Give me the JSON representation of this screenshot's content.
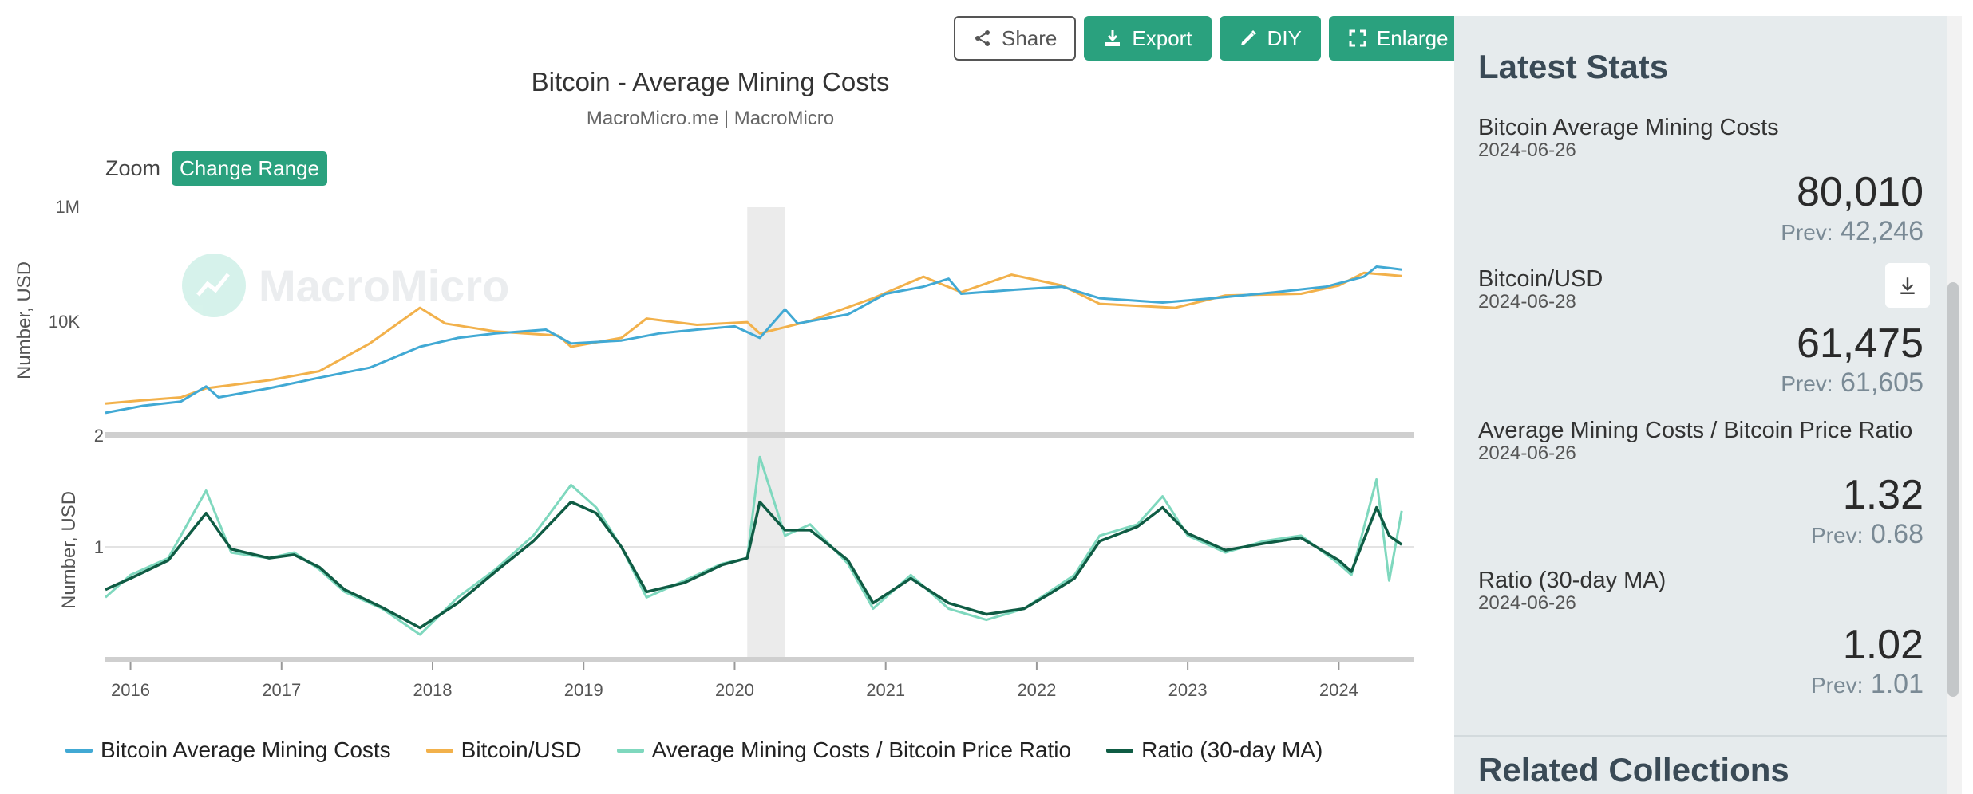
{
  "toolbar": {
    "share": "Share",
    "export": "Export",
    "diy": "DIY",
    "enlarge": "Enlarge"
  },
  "chart_header": {
    "title": "Bitcoin - Average Mining Costs",
    "subtitle": "MacroMicro.me | MacroMicro",
    "zoom_label": "Zoom",
    "zoom_button": "Change Range",
    "watermark": "MacroMicro"
  },
  "colors": {
    "mining_cost": "#41a9d4",
    "btc_usd": "#f2b14b",
    "ratio": "#7fd8be",
    "ratio_ma": "#0f5c44",
    "accent": "#2aa17e",
    "shade": "#ebebeb"
  },
  "chart_data": {
    "type": "line",
    "x_ticks": [
      "2016",
      "2017",
      "2018",
      "2019",
      "2020",
      "2021",
      "2022",
      "2023",
      "2024"
    ],
    "x_range": [
      "2015-11",
      "2024-07"
    ],
    "shaded_period": [
      "2020-02",
      "2020-05"
    ],
    "panels": [
      {
        "ylabel": "Number, USD",
        "yscale": "log",
        "y_ticks": [
          "1M",
          "10K"
        ],
        "ylim": [
          100,
          1000000
        ],
        "series": [
          {
            "name": "Bitcoin Average Mining Costs",
            "color": "#41a9d4",
            "points": [
              [
                "2015-11",
                240
              ],
              [
                "2016-02",
                320
              ],
              [
                "2016-05",
                380
              ],
              [
                "2016-07",
                700
              ],
              [
                "2016-08",
                450
              ],
              [
                "2016-12",
                650
              ],
              [
                "2017-04",
                1000
              ],
              [
                "2017-08",
                1500
              ],
              [
                "2017-12",
                3500
              ],
              [
                "2018-03",
                5000
              ],
              [
                "2018-06",
                6000
              ],
              [
                "2018-10",
                7000
              ],
              [
                "2018-12",
                4000
              ],
              [
                "2019-04",
                4500
              ],
              [
                "2019-07",
                6000
              ],
              [
                "2019-10",
                7000
              ],
              [
                "2020-01",
                8000
              ],
              [
                "2020-03",
                5000
              ],
              [
                "2020-05",
                16000
              ],
              [
                "2020-06",
                9000
              ],
              [
                "2020-10",
                13000
              ],
              [
                "2021-01",
                30000
              ],
              [
                "2021-04",
                40000
              ],
              [
                "2021-06",
                55000
              ],
              [
                "2021-07",
                30000
              ],
              [
                "2021-11",
                35000
              ],
              [
                "2022-03",
                40000
              ],
              [
                "2022-06",
                25000
              ],
              [
                "2022-11",
                21000
              ],
              [
                "2023-03",
                25000
              ],
              [
                "2023-08",
                32000
              ],
              [
                "2023-12",
                40000
              ],
              [
                "2024-03",
                60000
              ],
              [
                "2024-04",
                90000
              ],
              [
                "2024-05",
                85000
              ],
              [
                "2024-06",
                80010
              ]
            ]
          },
          {
            "name": "Bitcoin/USD",
            "color": "#f2b14b",
            "points": [
              [
                "2015-11",
                350
              ],
              [
                "2016-02",
                400
              ],
              [
                "2016-05",
                450
              ],
              [
                "2016-07",
                650
              ],
              [
                "2016-12",
                900
              ],
              [
                "2017-04",
                1300
              ],
              [
                "2017-08",
                4000
              ],
              [
                "2017-12",
                17000
              ],
              [
                "2018-02",
                9000
              ],
              [
                "2018-06",
                6500
              ],
              [
                "2018-11",
                5500
              ],
              [
                "2018-12",
                3500
              ],
              [
                "2019-04",
                5000
              ],
              [
                "2019-06",
                11000
              ],
              [
                "2019-10",
                8500
              ],
              [
                "2020-02",
                9500
              ],
              [
                "2020-03",
                6000
              ],
              [
                "2020-07",
                10000
              ],
              [
                "2020-12",
                25000
              ],
              [
                "2021-04",
                60000
              ],
              [
                "2021-07",
                32000
              ],
              [
                "2021-11",
                65000
              ],
              [
                "2022-03",
                42000
              ],
              [
                "2022-06",
                20000
              ],
              [
                "2022-12",
                17000
              ],
              [
                "2023-04",
                28000
              ],
              [
                "2023-10",
                30000
              ],
              [
                "2024-01",
                42000
              ],
              [
                "2024-03",
                70000
              ],
              [
                "2024-06",
                61475
              ]
            ]
          }
        ]
      },
      {
        "ylabel": "Number, USD",
        "y_ticks": [
          "2",
          "1"
        ],
        "ylim": [
          0,
          2
        ],
        "series": [
          {
            "name": "Average Mining Costs / Bitcoin Price Ratio",
            "color": "#7fd8be",
            "points": [
              [
                "2015-11",
                0.55
              ],
              [
                "2016-01",
                0.75
              ],
              [
                "2016-04",
                0.9
              ],
              [
                "2016-07",
                1.5
              ],
              [
                "2016-09",
                0.95
              ],
              [
                "2016-12",
                0.9
              ],
              [
                "2017-02",
                0.95
              ],
              [
                "2017-04",
                0.8
              ],
              [
                "2017-06",
                0.6
              ],
              [
                "2017-09",
                0.45
              ],
              [
                "2017-12",
                0.22
              ],
              [
                "2018-03",
                0.55
              ],
              [
                "2018-06",
                0.8
              ],
              [
                "2018-09",
                1.1
              ],
              [
                "2018-12",
                1.55
              ],
              [
                "2019-02",
                1.35
              ],
              [
                "2019-04",
                1.0
              ],
              [
                "2019-06",
                0.55
              ],
              [
                "2019-09",
                0.7
              ],
              [
                "2019-12",
                0.85
              ],
              [
                "2020-02",
                0.9
              ],
              [
                "2020-03",
                1.8
              ],
              [
                "2020-05",
                1.1
              ],
              [
                "2020-07",
                1.2
              ],
              [
                "2020-10",
                0.85
              ],
              [
                "2020-12",
                0.45
              ],
              [
                "2021-03",
                0.75
              ],
              [
                "2021-06",
                0.45
              ],
              [
                "2021-09",
                0.35
              ],
              [
                "2021-12",
                0.45
              ],
              [
                "2022-02",
                0.6
              ],
              [
                "2022-04",
                0.75
              ],
              [
                "2022-06",
                1.1
              ],
              [
                "2022-09",
                1.2
              ],
              [
                "2022-11",
                1.45
              ],
              [
                "2023-01",
                1.1
              ],
              [
                "2023-04",
                0.95
              ],
              [
                "2023-07",
                1.05
              ],
              [
                "2023-10",
                1.1
              ],
              [
                "2024-01",
                0.85
              ],
              [
                "2024-02",
                0.75
              ],
              [
                "2024-04",
                1.6
              ],
              [
                "2024-05",
                0.7
              ],
              [
                "2024-06",
                1.32
              ]
            ]
          },
          {
            "name": "Ratio (30-day MA)",
            "color": "#0f5c44",
            "points": [
              [
                "2015-11",
                0.62
              ],
              [
                "2016-01",
                0.72
              ],
              [
                "2016-04",
                0.88
              ],
              [
                "2016-07",
                1.3
              ],
              [
                "2016-09",
                0.98
              ],
              [
                "2016-12",
                0.9
              ],
              [
                "2017-02",
                0.93
              ],
              [
                "2017-04",
                0.82
              ],
              [
                "2017-06",
                0.62
              ],
              [
                "2017-09",
                0.46
              ],
              [
                "2017-12",
                0.28
              ],
              [
                "2018-03",
                0.5
              ],
              [
                "2018-06",
                0.78
              ],
              [
                "2018-09",
                1.05
              ],
              [
                "2018-12",
                1.4
              ],
              [
                "2019-02",
                1.3
              ],
              [
                "2019-04",
                1.0
              ],
              [
                "2019-06",
                0.6
              ],
              [
                "2019-09",
                0.68
              ],
              [
                "2019-12",
                0.84
              ],
              [
                "2020-02",
                0.9
              ],
              [
                "2020-03",
                1.4
              ],
              [
                "2020-05",
                1.15
              ],
              [
                "2020-07",
                1.15
              ],
              [
                "2020-10",
                0.88
              ],
              [
                "2020-12",
                0.5
              ],
              [
                "2021-03",
                0.72
              ],
              [
                "2021-06",
                0.5
              ],
              [
                "2021-09",
                0.4
              ],
              [
                "2021-12",
                0.45
              ],
              [
                "2022-02",
                0.58
              ],
              [
                "2022-04",
                0.72
              ],
              [
                "2022-06",
                1.05
              ],
              [
                "2022-09",
                1.18
              ],
              [
                "2022-11",
                1.35
              ],
              [
                "2023-01",
                1.12
              ],
              [
                "2023-04",
                0.97
              ],
              [
                "2023-07",
                1.03
              ],
              [
                "2023-10",
                1.08
              ],
              [
                "2024-01",
                0.88
              ],
              [
                "2024-02",
                0.78
              ],
              [
                "2024-04",
                1.35
              ],
              [
                "2024-05",
                1.1
              ],
              [
                "2024-06",
                1.02
              ]
            ]
          }
        ]
      }
    ],
    "legend": [
      {
        "label": "Bitcoin Average Mining Costs",
        "color": "#41a9d4"
      },
      {
        "label": "Bitcoin/USD",
        "color": "#f2b14b"
      },
      {
        "label": "Average Mining Costs / Bitcoin Price Ratio",
        "color": "#7fd8be"
      },
      {
        "label": "Ratio (30-day MA)",
        "color": "#0f5c44"
      }
    ],
    "legend_position": "bottom",
    "grid": true
  },
  "side_panel": {
    "heading": "Latest Stats",
    "stats": [
      {
        "name": "Bitcoin Average Mining Costs",
        "date": "2024-06-26",
        "value": "80,010",
        "prev_label": "Prev:",
        "prev": "42,246"
      },
      {
        "name": "Bitcoin/USD",
        "date": "2024-06-28",
        "value": "61,475",
        "prev_label": "Prev:",
        "prev": "61,605"
      },
      {
        "name": "Average Mining Costs / Bitcoin Price Ratio",
        "date": "2024-06-26",
        "value": "1.32",
        "prev_label": "Prev:",
        "prev": "0.68"
      },
      {
        "name": "Ratio (30-day MA)",
        "date": "2024-06-26",
        "value": "1.02",
        "prev_label": "Prev:",
        "prev": "1.01"
      }
    ],
    "related_heading": "Related Collections"
  }
}
